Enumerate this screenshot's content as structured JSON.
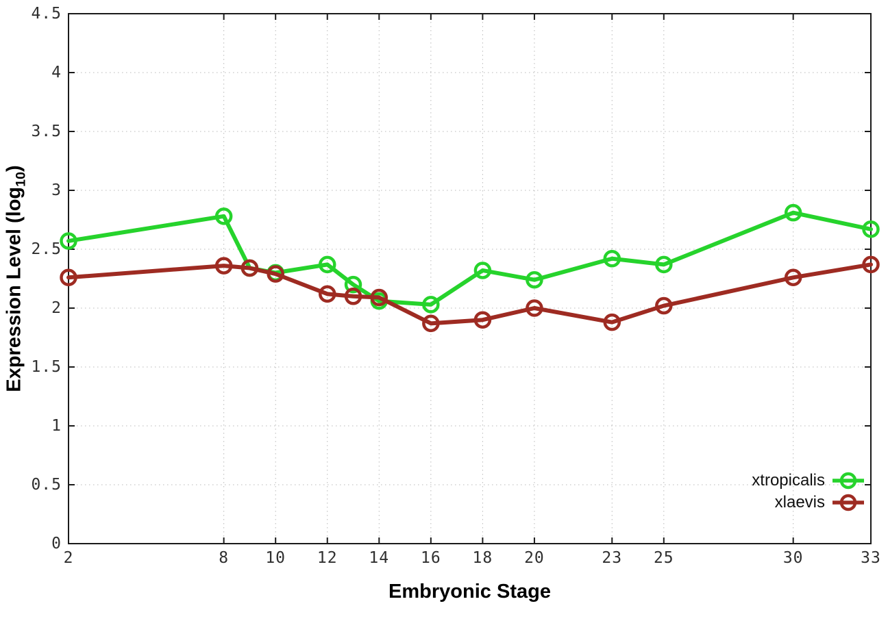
{
  "chart_data": {
    "type": "line",
    "xlabel": "Embryonic Stage",
    "ylabel": "Expression Level (log10)",
    "ylabel_parts": {
      "prefix": "Expression Level (log",
      "sub": "10",
      "suffix": ")"
    },
    "x": [
      2,
      8,
      9,
      10,
      12,
      13,
      14,
      16,
      18,
      20,
      23,
      25,
      30,
      33
    ],
    "series": [
      {
        "name": "xtropicalis",
        "color": "#26d32c",
        "marker": "open-circle",
        "values": [
          2.57,
          2.78,
          2.34,
          2.3,
          2.37,
          2.2,
          2.06,
          2.03,
          2.32,
          2.24,
          2.42,
          2.37,
          2.81,
          2.67
        ]
      },
      {
        "name": "xlaevis",
        "color": "#9e2b22",
        "marker": "open-circle",
        "values": [
          2.26,
          2.36,
          2.34,
          2.29,
          2.12,
          2.1,
          2.09,
          1.87,
          1.9,
          2.0,
          1.88,
          2.02,
          2.26,
          2.37
        ]
      }
    ],
    "xlim": [
      2,
      33
    ],
    "ylim": [
      0,
      4.5
    ],
    "xticks": [
      2,
      8,
      10,
      12,
      14,
      16,
      18,
      20,
      23,
      25,
      30,
      33
    ],
    "xtick_labels": [
      "2",
      "8",
      "10",
      "12",
      "14",
      "16",
      "18",
      "20",
      "23",
      "25",
      "30",
      "33"
    ],
    "yticks": [
      0,
      0.5,
      1,
      1.5,
      2,
      2.5,
      3,
      3.5,
      4,
      4.5
    ],
    "ytick_labels": [
      "0",
      "0.5",
      "1",
      "1.5",
      "2",
      "2.5",
      "3",
      "3.5",
      "4",
      "4.5"
    ],
    "grid": "dotted",
    "legend_position": "bottom-right"
  },
  "style_colors": {
    "border": "#1a1a1a",
    "grid": "#b8b8b8",
    "tick_text": "#2f2f2f",
    "background": "#ffffff"
  }
}
